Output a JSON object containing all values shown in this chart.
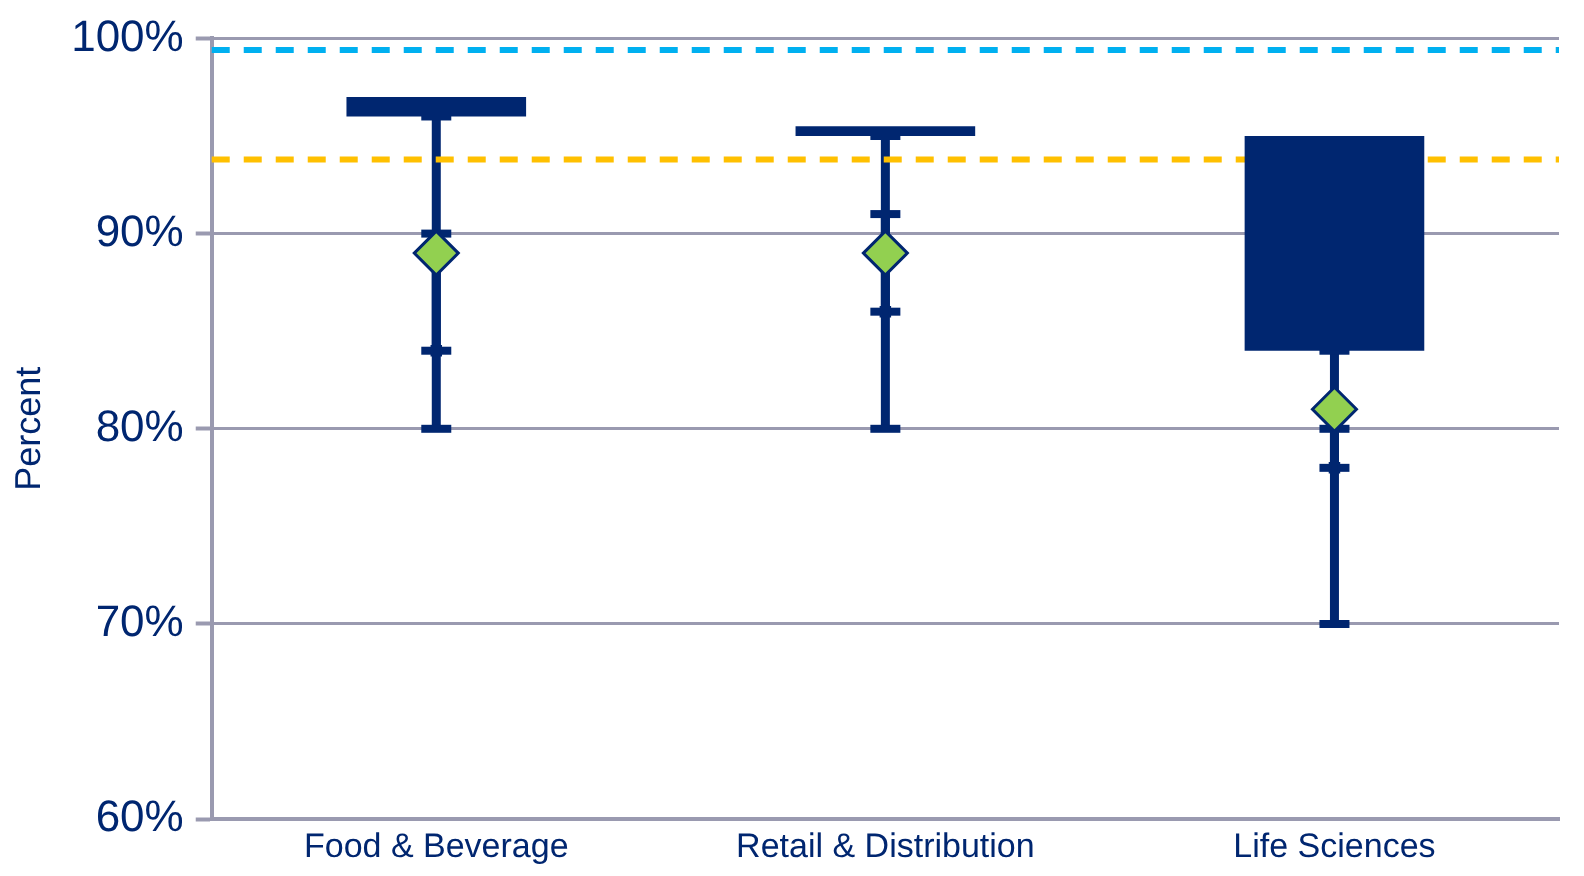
{
  "chart_data": {
    "type": "bar",
    "ylabel": "Percent",
    "categories": [
      "Food & Beverage",
      "Retail & Distribution",
      "Life Sciences"
    ],
    "series": [
      {
        "color": "#002670",
        "base": [
          96,
          95,
          84
        ],
        "values": [
          1,
          0.5,
          11
        ]
      },
      {
        "type": "scatter",
        "marker": "square",
        "color": "#002670",
        "values": [
          84,
          86,
          78
        ],
        "errors": [
          [
            84,
            90
          ],
          [
            86,
            91
          ],
          [
            78,
            80
          ]
        ]
      },
      {
        "type": "scatter",
        "marker": "diamond",
        "color": "#92d050",
        "values": [
          89,
          89,
          81
        ],
        "errors": [
          [
            80,
            96
          ],
          [
            80,
            95
          ],
          [
            70,
            84
          ]
        ]
      }
    ],
    "ylim": [
      60,
      100
    ],
    "yticks": [
      {
        "value": 60,
        "label": "60%"
      },
      {
        "value": 70,
        "label": "70%"
      },
      {
        "value": 80,
        "label": "80%"
      },
      {
        "value": 90,
        "label": "90%"
      },
      {
        "value": 100,
        "label": "100%"
      }
    ],
    "grid": "y",
    "ref_lines": [
      {
        "axis": "y",
        "value": 99.4,
        "color": "#00b0f0",
        "line_style": "dashed"
      },
      {
        "axis": "y",
        "value": 93.8,
        "color": "#ffc000",
        "line_style": "dashed"
      }
    ]
  }
}
